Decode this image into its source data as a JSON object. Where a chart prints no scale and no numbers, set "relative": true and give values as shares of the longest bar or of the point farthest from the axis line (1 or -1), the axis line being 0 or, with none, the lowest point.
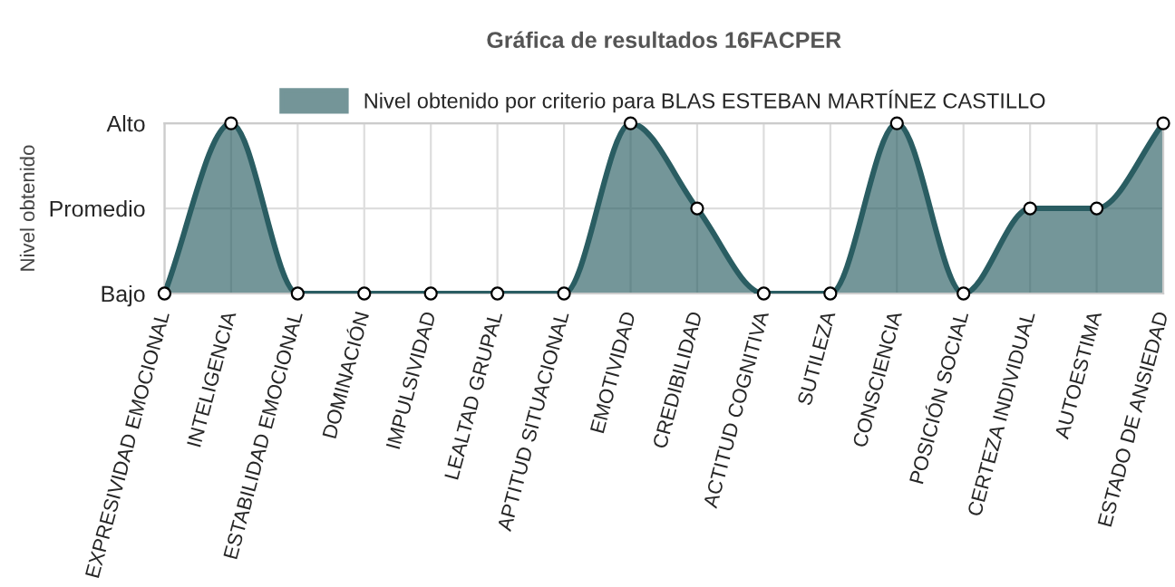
{
  "chart_data": {
    "type": "area",
    "title": "Gráfica de resultados 16FACPER",
    "ylabel": "Nivel obtenido",
    "categories": [
      "EXPRESIVIDAD EMOCIONAL",
      "INTELIGENCIA",
      "ESTABILIDAD EMOCIONAL",
      "DOMINACIÓN",
      "IMPULSIVIDAD",
      "LEALTAD GRUPAL",
      "APTITUD SITUACIONAL",
      "EMOTIVIDAD",
      "CREDIBILIDAD",
      "ACTITUD COGNITIVA",
      "SUTILEZA",
      "CONSCIENCIA",
      "POSICIÓN SOCIAL",
      "CERTEZA INDIVIDUAL",
      "AUTOESTIMA",
      "ESTADO DE ANSIEDAD"
    ],
    "series": [
      {
        "name": "Nivel obtenido por criterio para BLAS ESTEBAN MARTÍNEZ CASTILLO",
        "color": "#2a5d62",
        "values": [
          0,
          1,
          0,
          0,
          0,
          0,
          0,
          1,
          0.5,
          0,
          0,
          1,
          0,
          0.5,
          0.5,
          1
        ]
      }
    ],
    "relative": true,
    "annotations": [
      "Bajo",
      "Promedio",
      "Alto"
    ],
    "grid": true,
    "legend": "top",
    "marker": "circle"
  }
}
